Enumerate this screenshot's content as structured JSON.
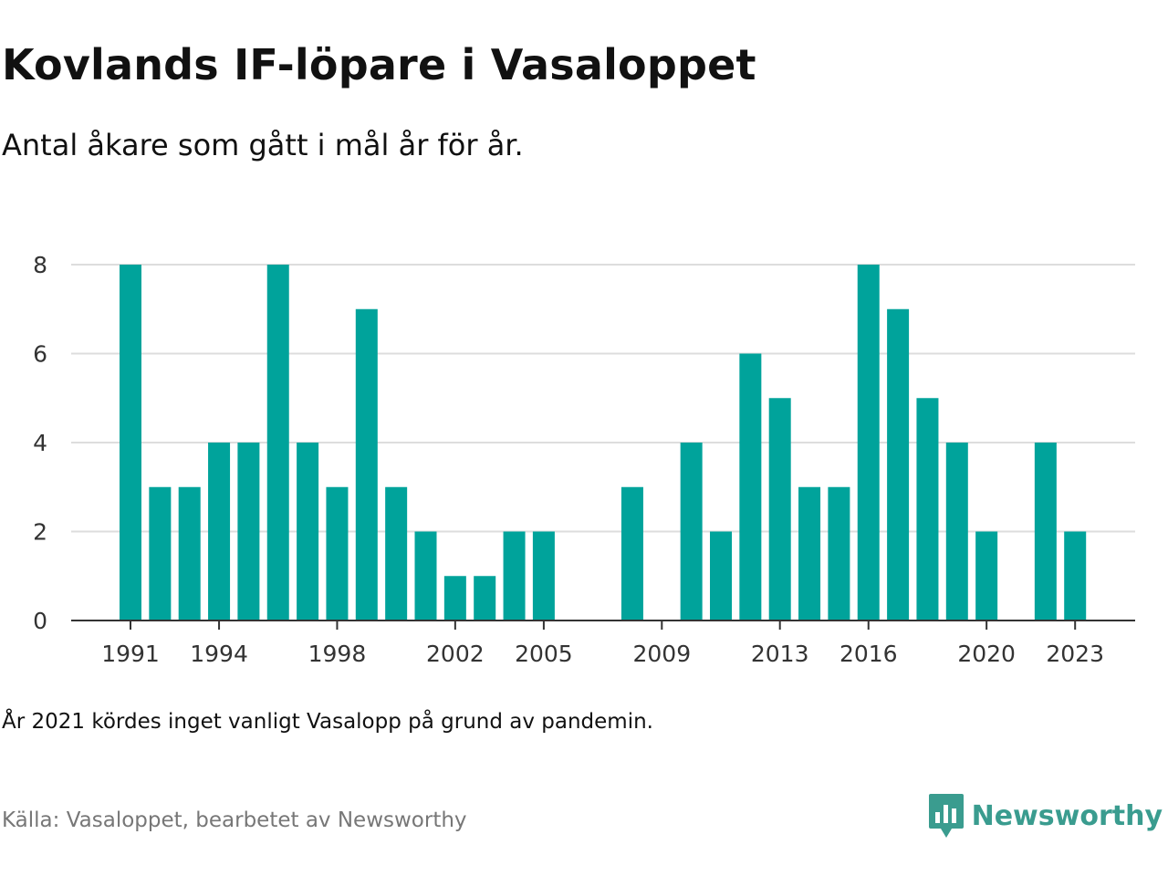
{
  "header": {
    "title": "Kovlands IF-löpare i Vasaloppet",
    "subtitle": "Antal åkare som gått i mål år för år."
  },
  "footer": {
    "note": "År 2021 kördes inget vanligt Vasalopp på grund av pandemin.",
    "source": "Källa: Vasaloppet, bearbetet av Newsworthy"
  },
  "brand": {
    "name": "Newsworthy",
    "color": "#3a9c8f"
  },
  "colors": {
    "bar": "#00a39b",
    "grid": "#dddddd",
    "axis": "#333333"
  },
  "chart_data": {
    "type": "bar",
    "x": [
      1991,
      1992,
      1993,
      1994,
      1995,
      1996,
      1997,
      1998,
      1999,
      2000,
      2001,
      2002,
      2003,
      2004,
      2005,
      2006,
      2007,
      2008,
      2009,
      2010,
      2011,
      2012,
      2013,
      2014,
      2015,
      2016,
      2017,
      2018,
      2019,
      2020,
      2021,
      2022,
      2023
    ],
    "values": [
      8,
      3,
      3,
      4,
      4,
      8,
      4,
      3,
      7,
      3,
      2,
      1,
      1,
      2,
      2,
      0,
      0,
      3,
      0,
      4,
      2,
      6,
      5,
      3,
      3,
      8,
      7,
      5,
      4,
      2,
      0,
      4,
      2
    ],
    "x_ticks": [
      1991,
      1994,
      1998,
      2002,
      2005,
      2009,
      2013,
      2016,
      2020,
      2023
    ],
    "y_ticks": [
      0,
      2,
      4,
      6,
      8
    ],
    "ylim": [
      0,
      8
    ],
    "xlabel": "",
    "ylabel": "",
    "grid": true
  }
}
